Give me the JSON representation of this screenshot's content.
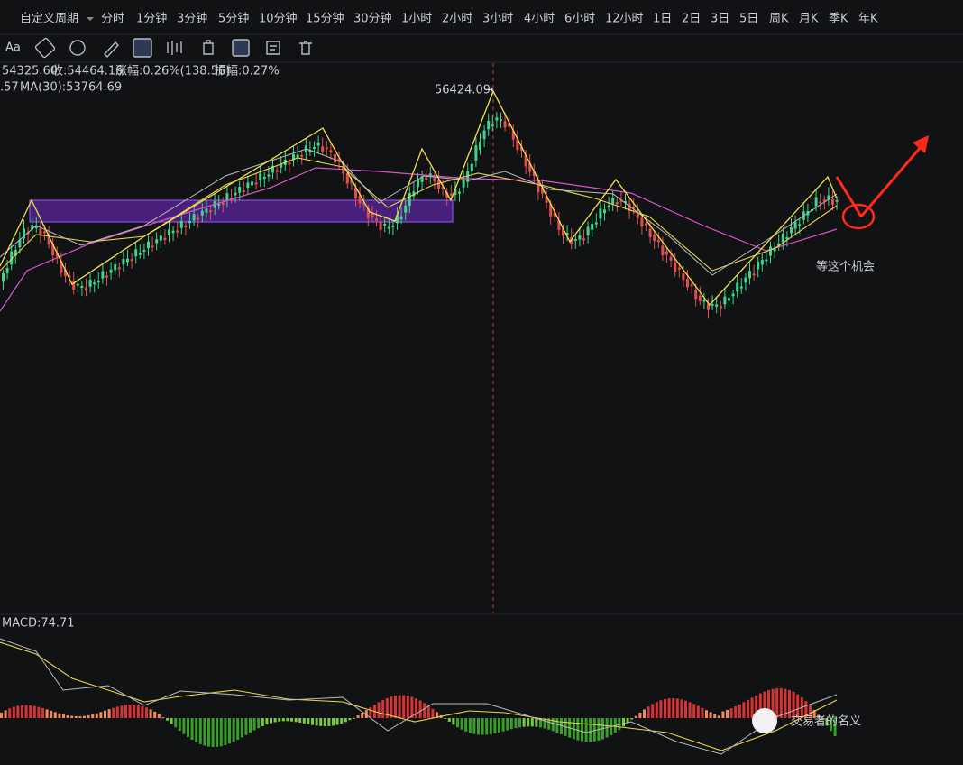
{
  "toolbar": {
    "period_menu": "自定义周期",
    "periods": [
      "分时",
      "1分钟",
      "3分钟",
      "5分钟",
      "10分钟",
      "15分钟",
      "30分钟",
      "1小时",
      "2小时",
      "3小时",
      "4小时",
      "6小时",
      "12小时",
      "1日",
      "2日",
      "3日",
      "5日",
      "周K",
      "月K",
      "季K",
      "年K"
    ],
    "font_button": "Aa"
  },
  "info": {
    "open": "54325.60",
    "close": "收:54464.16",
    "change": "涨幅:0.26%(138.56)",
    "amplitude": "振幅:0.27%",
    "ma_partial": ".57",
    "ma30": "MA(30):53764.69"
  },
  "chart": {
    "high_marker": "56424.09",
    "annotation": "等这个机会"
  },
  "macd": {
    "label": "MACD:74.71"
  },
  "watermark": "交易者的名义"
}
